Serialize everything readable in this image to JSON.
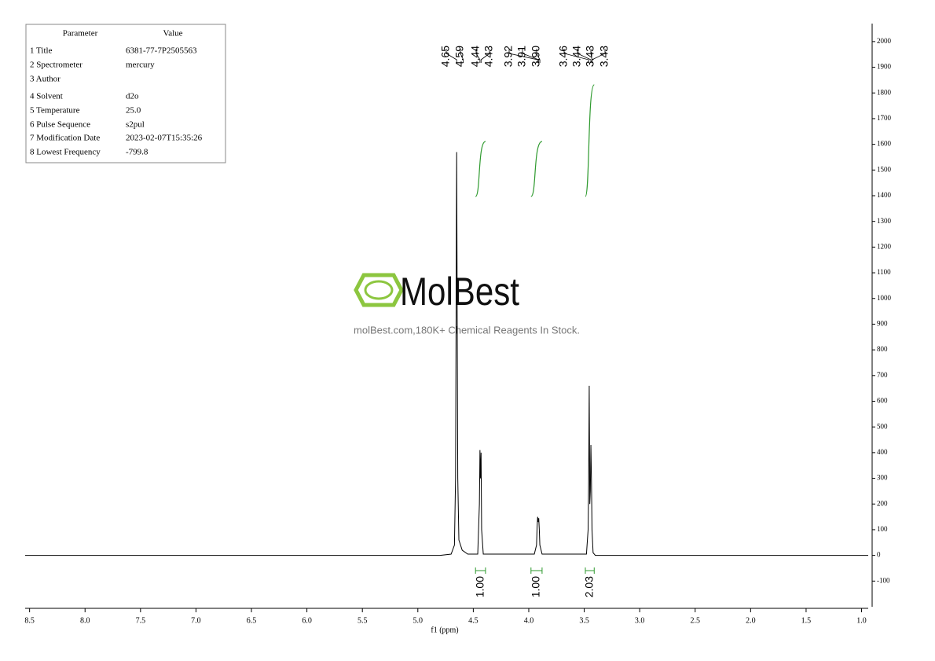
{
  "parameter_table": {
    "header": [
      "Parameter",
      "Value"
    ],
    "rows": [
      [
        "1 Title",
        "6381-77-7P2505563"
      ],
      [
        "2 Spectrometer",
        "mercury"
      ],
      [
        "3 Author"
      ],
      [
        "4 Solvent",
        "d2o"
      ],
      [
        "5 Temperature",
        "25.0"
      ],
      [
        "6 Pulse Sequence",
        "s2pul"
      ],
      [
        "7 Modification Date",
        "2023-02-07T15:35:26"
      ],
      [
        "8 Lowest Frequency",
        "-799.8"
      ]
    ]
  },
  "watermark": {
    "brand": "MolBest",
    "tagline": "molBest.com,180K+ Chemical Reagents In Stock."
  },
  "chart_data": {
    "type": "line",
    "x_label": "f1 (ppm)",
    "color": "#000000",
    "integral_color": "#2e9a2e",
    "xlim": [
      8.54,
      0.94
    ],
    "ylim": [
      -200,
      2070
    ],
    "xticks": [
      8.5,
      {
        "value": 8,
        "label": "8.0"
      },
      7.5,
      {
        "value": 7,
        "label": "7.0"
      },
      6.5,
      {
        "value": 6,
        "label": "6.0"
      },
      5.5,
      {
        "value": 5,
        "label": "5.0"
      },
      4.5,
      {
        "value": 4,
        "label": "4.0"
      },
      3.5,
      {
        "value": 3,
        "label": "3.0"
      },
      2.5,
      {
        "value": 2,
        "label": "2.0"
      },
      1.5,
      {
        "value": 1,
        "label": "1.0"
      }
    ],
    "yticks": [
      -100,
      0,
      100,
      200,
      300,
      400,
      500,
      600,
      700,
      800,
      900,
      1000,
      1100,
      1200,
      1300,
      1400,
      1500,
      1600,
      1700,
      1800,
      1900,
      2000
    ],
    "x": [
      8.54,
      4.8,
      4.7,
      4.67,
      4.66,
      4.65,
      4.64,
      4.63,
      4.6,
      4.55,
      4.46,
      4.445,
      4.44,
      4.435,
      4.43,
      4.425,
      4.41,
      3.95,
      3.93,
      3.925,
      3.92,
      3.915,
      3.91,
      3.905,
      3.9,
      3.88,
      3.48,
      3.465,
      3.46,
      3.455,
      3.45,
      3.445,
      3.44,
      3.435,
      3.43,
      3.42,
      3.4,
      0.94
    ],
    "values": [
      0,
      0,
      5,
      40,
      300,
      1570,
      300,
      60,
      20,
      5,
      5,
      200,
      410,
      300,
      400,
      100,
      5,
      5,
      40,
      110,
      150,
      130,
      145,
      100,
      40,
      5,
      5,
      100,
      300,
      660,
      200,
      250,
      430,
      300,
      100,
      10,
      0,
      0
    ],
    "peaks": [
      {
        "value": 4.65,
        "label": "4.65"
      },
      {
        "value": 4.59,
        "label": "4.59"
      },
      {
        "value": 4.44,
        "label": "4.44"
      },
      {
        "value": 4.43,
        "label": "4.43"
      },
      {
        "value": 3.92,
        "label": "3.92"
      },
      {
        "value": 3.91,
        "label": "3.91"
      },
      {
        "value": 3.9,
        "label": "3.90"
      },
      {
        "value": 3.46,
        "label": "3.46"
      },
      {
        "value": 3.44,
        "label": "3.44"
      },
      {
        "value": 3.43,
        "label": "3.43"
      },
      {
        "value": 3.43,
        "label": "3.43"
      }
    ],
    "integrals": [
      {
        "from": 4.48,
        "to": 4.39,
        "value": 1,
        "label": "1.00"
      },
      {
        "from": 3.98,
        "to": 3.88,
        "value": 1,
        "label": "1.00"
      },
      {
        "from": 3.49,
        "to": 3.41,
        "value": 2.03,
        "label": "2.03"
      }
    ]
  }
}
